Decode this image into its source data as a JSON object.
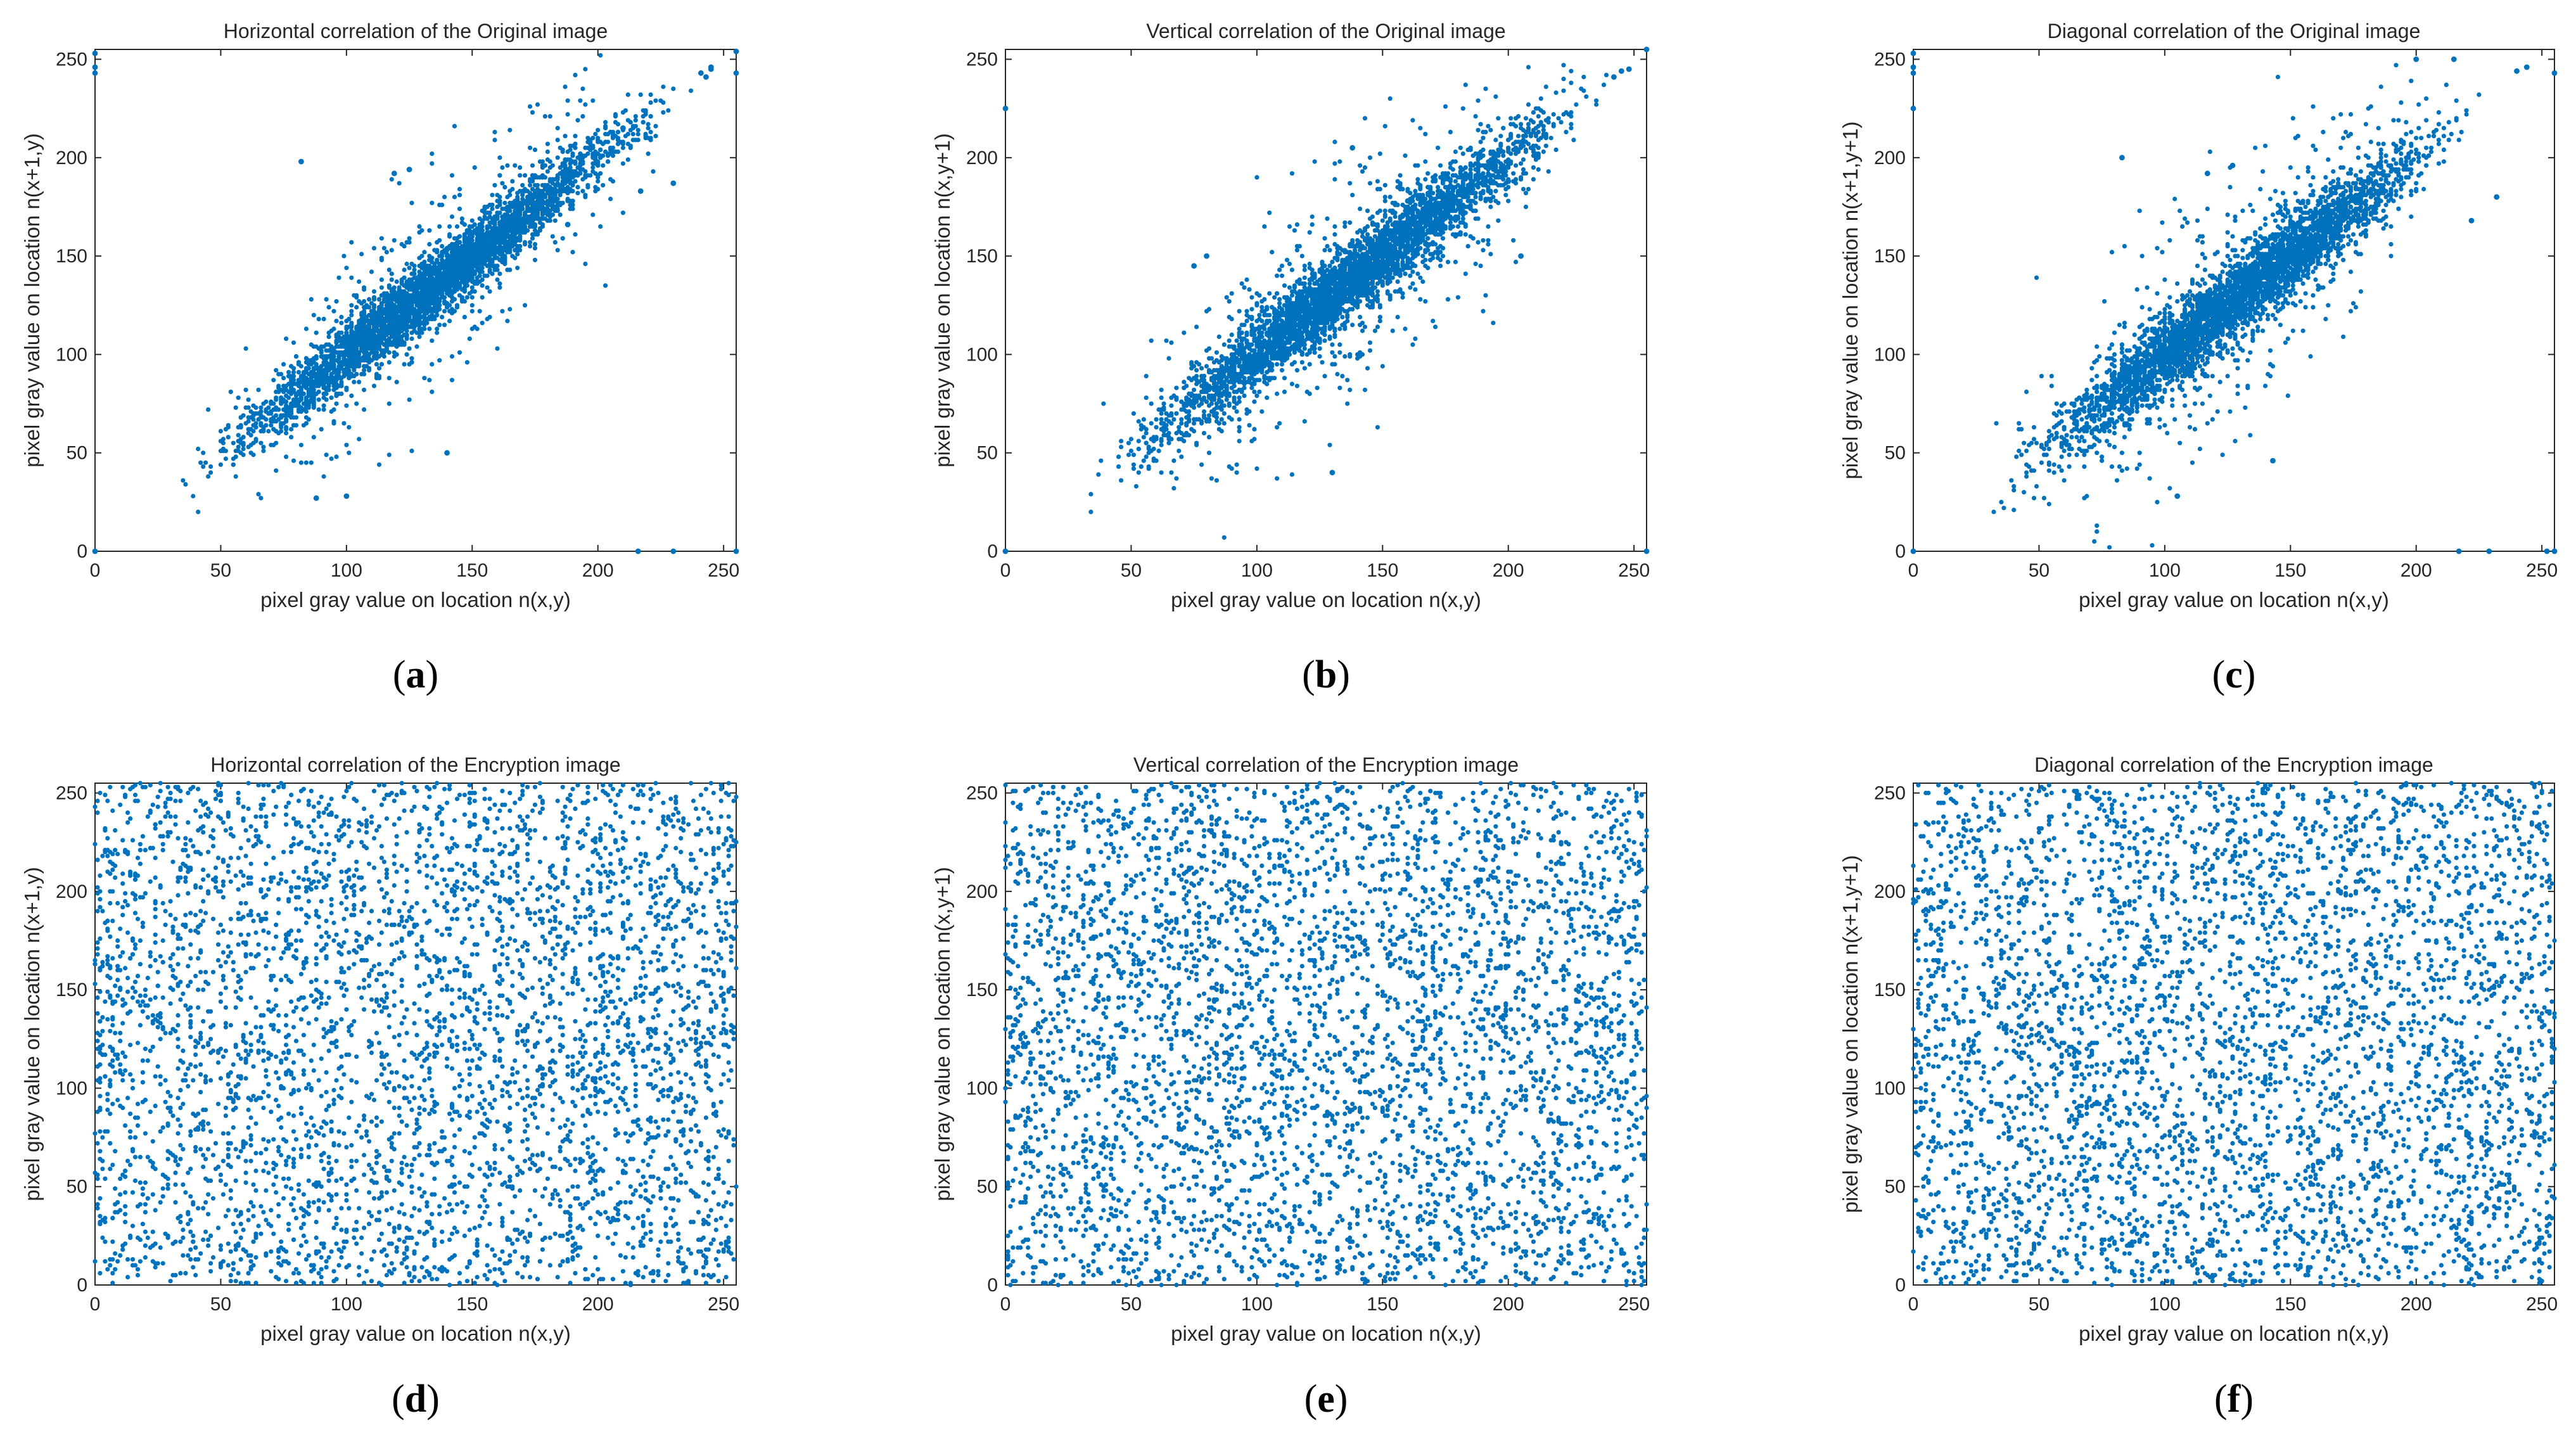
{
  "figure": {
    "marker_color": "#0072BD",
    "axes_color": "#262626"
  },
  "chart_data": [
    {
      "type": "scatter",
      "panel": "a",
      "pattern": "correlated",
      "title": "Horizontal correlation of the Original image",
      "xlabel": "pixel gray value on location n(x,y)",
      "ylabel": "pixel gray value on location n(x+1,y)",
      "xlim": [
        0,
        255
      ],
      "ylim": [
        0,
        255
      ],
      "xticks": [
        0,
        50,
        100,
        150,
        200,
        250
      ],
      "yticks": [
        0,
        50,
        100,
        150,
        200,
        250
      ],
      "caption": "a",
      "extra_points": [
        [
          0,
          0
        ],
        [
          0,
          243
        ],
        [
          0,
          246
        ],
        [
          0,
          253
        ],
        [
          255,
          0
        ],
        [
          255,
          243
        ],
        [
          255,
          254
        ],
        [
          216,
          0
        ],
        [
          230,
          0
        ],
        [
          245,
          246
        ],
        [
          241,
          243
        ],
        [
          243,
          241
        ],
        [
          119,
          192
        ],
        [
          125,
          194
        ],
        [
          82,
          198
        ],
        [
          230,
          187
        ],
        [
          217,
          183
        ],
        [
          188,
          166
        ],
        [
          210,
          215
        ],
        [
          140,
          50
        ],
        [
          100,
          28
        ],
        [
          88,
          27
        ],
        [
          245,
          245
        ]
      ],
      "n_points": 4200,
      "spread": 8,
      "x_range": [
        28,
        240
      ],
      "seed": 11
    },
    {
      "type": "scatter",
      "panel": "b",
      "pattern": "correlated",
      "title": "Vertical correlation of the Original image",
      "xlabel": "pixel gray value on location n(x,y)",
      "ylabel": "pixel gray value on location n(x,y+1)",
      "xlim": [
        0,
        255
      ],
      "ylim": [
        0,
        255
      ],
      "xticks": [
        0,
        50,
        100,
        150,
        200,
        250
      ],
      "yticks": [
        0,
        50,
        100,
        150,
        200,
        250
      ],
      "caption": "b",
      "extra_points": [
        [
          0,
          0
        ],
        [
          0,
          225
        ],
        [
          255,
          0
        ],
        [
          255,
          255
        ],
        [
          248,
          245
        ],
        [
          245,
          244
        ],
        [
          242,
          241
        ],
        [
          130,
          40
        ],
        [
          200,
          188
        ],
        [
          160,
          178
        ],
        [
          75,
          145
        ],
        [
          80,
          150
        ],
        [
          205,
          150
        ],
        [
          138,
          205
        ]
      ],
      "n_points": 4200,
      "spread": 9,
      "x_range": [
        28,
        245
      ],
      "seed": 23
    },
    {
      "type": "scatter",
      "panel": "c",
      "pattern": "correlated",
      "title": "Diagonal correlation of the Original image",
      "xlabel": "pixel gray value on location n(x,y)",
      "ylabel": "pixel gray value on location n(x+1,y+1)",
      "xlim": [
        0,
        255
      ],
      "ylim": [
        0,
        255
      ],
      "xticks": [
        0,
        50,
        100,
        150,
        200,
        250
      ],
      "yticks": [
        0,
        50,
        100,
        150,
        200,
        250
      ],
      "caption": "c",
      "extra_points": [
        [
          0,
          0
        ],
        [
          0,
          243
        ],
        [
          0,
          246
        ],
        [
          0,
          253
        ],
        [
          0,
          225
        ],
        [
          255,
          0
        ],
        [
          255,
          243
        ],
        [
          252,
          0
        ],
        [
          217,
          0
        ],
        [
          229,
          0
        ],
        [
          244,
          246
        ],
        [
          240,
          244
        ],
        [
          117,
          192
        ],
        [
          127,
          196
        ],
        [
          83,
          200
        ],
        [
          222,
          168
        ],
        [
          232,
          180
        ],
        [
          143,
          46
        ],
        [
          105,
          28
        ],
        [
          200,
          250
        ],
        [
          215,
          250
        ]
      ],
      "n_points": 4200,
      "spread": 10,
      "x_range": [
        28,
        230
      ],
      "seed": 37
    },
    {
      "type": "scatter",
      "panel": "d",
      "pattern": "uniform",
      "title": "Horizontal correlation of the Encryption image",
      "xlabel": "pixel gray value on location n(x,y)",
      "ylabel": "pixel gray value on location n(x+1,y)",
      "xlim": [
        0,
        255
      ],
      "ylim": [
        0,
        255
      ],
      "xticks": [
        0,
        50,
        100,
        150,
        200,
        250
      ],
      "yticks": [
        0,
        50,
        100,
        150,
        200,
        250
      ],
      "caption": "d",
      "extra_points": [],
      "n_points": 4200,
      "seed": 53
    },
    {
      "type": "scatter",
      "panel": "e",
      "pattern": "uniform",
      "title": "Vertical correlation of the Encryption image",
      "xlabel": "pixel gray value on location n(x,y)",
      "ylabel": "pixel gray value on location n(x,y+1)",
      "xlim": [
        0,
        255
      ],
      "ylim": [
        0,
        255
      ],
      "xticks": [
        0,
        50,
        100,
        150,
        200,
        250
      ],
      "yticks": [
        0,
        50,
        100,
        150,
        200,
        250
      ],
      "caption": "e",
      "extra_points": [],
      "n_points": 4200,
      "seed": 71
    },
    {
      "type": "scatter",
      "panel": "f",
      "pattern": "uniform",
      "title": "Diagonal correlation of the Encryption image",
      "xlabel": "pixel gray value on location n(x,y)",
      "ylabel": "pixel gray value on location n(x+1,y+1)",
      "xlim": [
        0,
        255
      ],
      "ylim": [
        0,
        255
      ],
      "xticks": [
        0,
        50,
        100,
        150,
        200,
        250
      ],
      "yticks": [
        0,
        50,
        100,
        150,
        200,
        250
      ],
      "caption": "f",
      "extra_points": [],
      "n_points": 4200,
      "seed": 89
    }
  ]
}
